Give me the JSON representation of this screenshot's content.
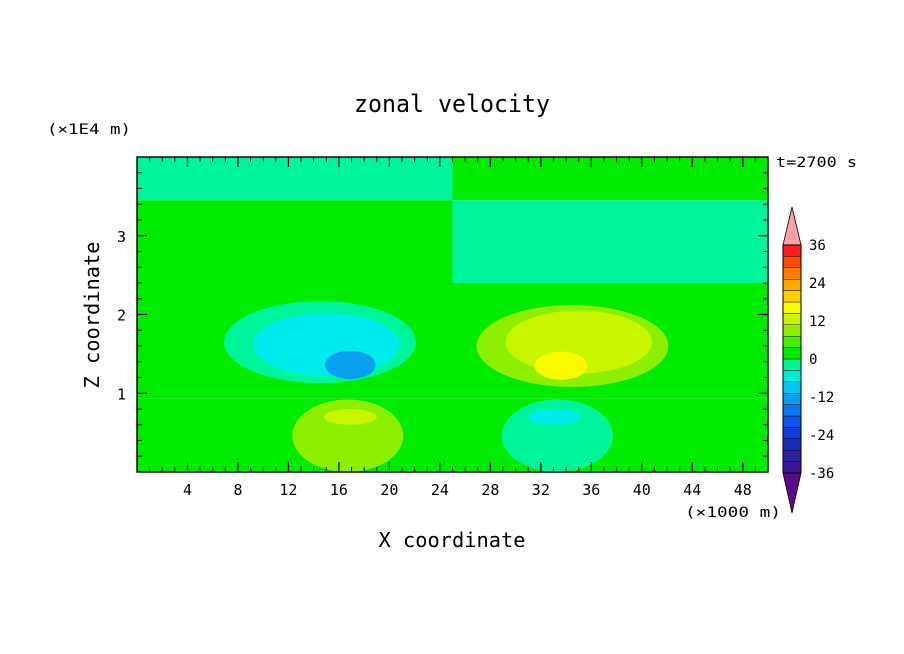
{
  "chart_data": {
    "type": "heatmap",
    "title": "zonal velocity",
    "xlabel": "X coordinate",
    "ylabel": "Z coordinate",
    "x_unit": "(×1000 m)",
    "y_unit": "(×1E4 m)",
    "time_label": "t=2700 s",
    "xlim": [
      0,
      50
    ],
    "ylim": [
      0,
      4
    ],
    "x_ticks": [
      4,
      8,
      12,
      16,
      20,
      24,
      28,
      32,
      36,
      40,
      44,
      48
    ],
    "y_ticks": [
      1,
      2,
      3
    ],
    "colorbar": {
      "min": -40,
      "max": 40,
      "step": 4,
      "labels": [
        36,
        24,
        12,
        0,
        -12,
        -24,
        -36
      ],
      "extend": "both",
      "colors": [
        "#5c0a8a",
        "#3c1499",
        "#2a229e",
        "#1c2ab8",
        "#0f3bd6",
        "#0b55ee",
        "#0b77f2",
        "#0a9ef0",
        "#00c8f0",
        "#00ecda",
        "#00f58c",
        "#00eb00",
        "#48f000",
        "#8ef000",
        "#c8f500",
        "#fafa00",
        "#ffd200",
        "#ffa800",
        "#ff7d00",
        "#ff4a00",
        "#ff1e1e",
        "#ffa0a8"
      ]
    },
    "bands": [
      {
        "z0": 3.45,
        "z1": 4.0,
        "left": 0,
        "right": 2
      },
      {
        "z0": 2.4,
        "z1": 3.45,
        "left": 2,
        "right": 0
      },
      {
        "z0": 0.93,
        "z1": 2.4,
        "left": 2,
        "right": 2
      },
      {
        "z0": 0.0,
        "z1": 0.93,
        "left": 2,
        "right": 2
      }
    ],
    "features": [
      {
        "cx": 14.5,
        "cz": 1.65,
        "rx": 7.6,
        "rz": 0.52,
        "value": 1
      },
      {
        "cx": 15.0,
        "cz": 1.62,
        "rx": 5.8,
        "rz": 0.4,
        "value": 0
      },
      {
        "cx": 16.9,
        "cz": 1.36,
        "rx": 2.0,
        "rz": 0.18,
        "value": -1
      },
      {
        "cx": 34.5,
        "cz": 1.6,
        "rx": 7.6,
        "rz": 0.52,
        "value": 3
      },
      {
        "cx": 35.0,
        "cz": 1.65,
        "rx": 5.8,
        "rz": 0.4,
        "value": 4
      },
      {
        "cx": 33.6,
        "cz": 1.35,
        "rx": 2.1,
        "rz": 0.18,
        "value": 5
      },
      {
        "cx": 16.7,
        "cz": 0.46,
        "rx": 4.4,
        "rz": 0.46,
        "value": 3
      },
      {
        "cx": 16.9,
        "cz": 0.7,
        "rx": 2.1,
        "rz": 0.1,
        "value": 4
      },
      {
        "cx": 33.3,
        "cz": 0.46,
        "rx": 4.4,
        "rz": 0.46,
        "value": 1
      },
      {
        "cx": 33.1,
        "cz": 0.7,
        "rx": 2.1,
        "rz": 0.1,
        "value": 0
      }
    ],
    "palette_map": {
      "-1": "#0aa0f0",
      "0": "#00ecec",
      "1": "#00f59a",
      "2": "#00eb00",
      "3": "#8cf000",
      "4": "#c8f500",
      "5": "#fafa00"
    },
    "grid": false,
    "legend_position": "right"
  }
}
